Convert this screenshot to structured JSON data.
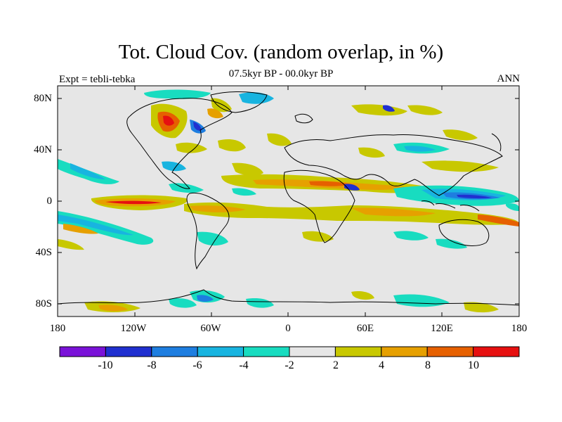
{
  "title": "Tot. Cloud Cov. (random overlap, in %)",
  "subtitle": "07.5kyr BP - 00.0kyr BP",
  "experiment": "Expt = tebli-tebka",
  "period": "ANN",
  "lat_labels": [
    "80N",
    "40N",
    "0",
    "40S",
    "80S"
  ],
  "lon_labels": [
    "180",
    "120W",
    "60W",
    "0",
    "60E",
    "120E",
    "180"
  ],
  "colorbar": {
    "labels": [
      "-10",
      "-8",
      "-6",
      "-4",
      "-2",
      "2",
      "4",
      "8",
      "10"
    ],
    "colors": [
      "#7a12d8",
      "#2030d0",
      "#1e7ee0",
      "#18b4e0",
      "#18dcc0",
      "#e6e6e6",
      "#c8c800",
      "#e6a000",
      "#e66000",
      "#e61010"
    ]
  }
}
